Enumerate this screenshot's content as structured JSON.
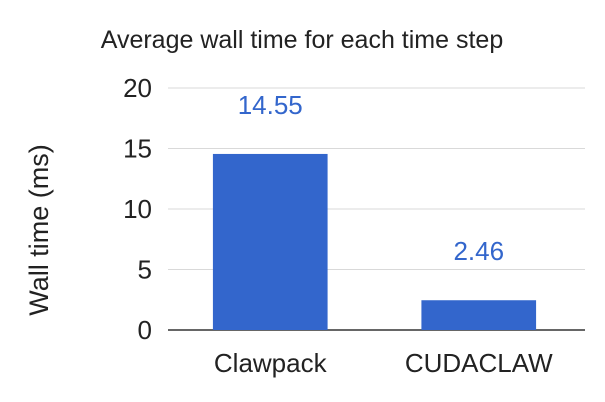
{
  "chart_data": {
    "type": "bar",
    "title": "Average wall time for each time step",
    "xlabel": "",
    "ylabel": "Wall time (ms)",
    "categories": [
      "Clawpack",
      "CUDACLAW"
    ],
    "values": [
      14.55,
      2.46
    ],
    "data_labels": [
      "14.55",
      "2.46"
    ],
    "ylim": [
      0,
      20
    ],
    "yticks": [
      0,
      5,
      10,
      15,
      20
    ],
    "ytick_labels": [
      "0",
      "5",
      "10",
      "15",
      "20"
    ],
    "grid": true,
    "legend": "none",
    "colors": {
      "bar": "#3366cc",
      "data_label": "#3366cc",
      "grid": "#d9d9d9",
      "baseline": "#333333"
    }
  }
}
